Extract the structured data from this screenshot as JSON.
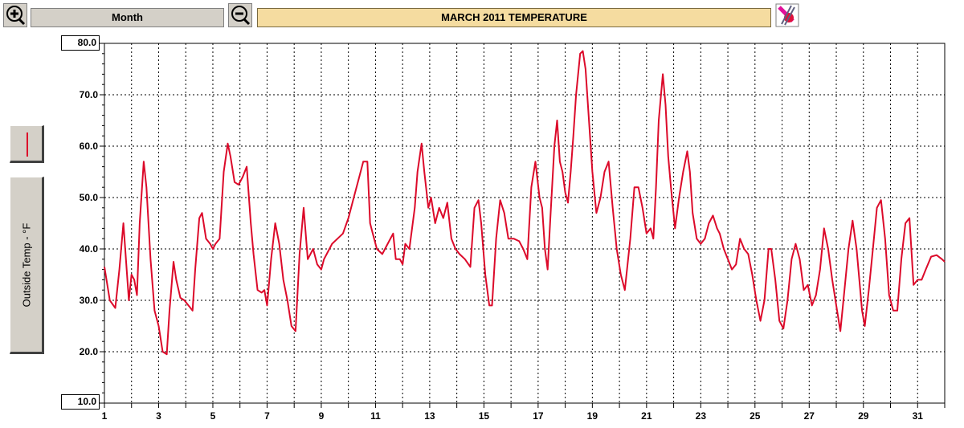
{
  "toolbar": {
    "zoom_in_icon": "zoom-in-magnifier-icon",
    "zoom_out_icon": "zoom-out-magnifier-icon",
    "period_label": "Month",
    "title": "MARCH 2011  TEMPERATURE",
    "print_icon": "print-pencil-icon"
  },
  "sidebar": {
    "legend_color": "#dc0a2a",
    "ylabel": "Outside Temp - °F"
  },
  "chart_data": {
    "type": "line",
    "title": "MARCH 2011  TEMPERATURE",
    "ylabel": "Outside Temp - °F",
    "xlabel": "",
    "xlim": [
      1,
      32
    ],
    "ylim": [
      10,
      80
    ],
    "y_ticks": [
      "10.0",
      "20.0",
      "30.0",
      "40.0",
      "50.0",
      "60.0",
      "70.0",
      "80.0"
    ],
    "x_ticks": [
      "1",
      "3",
      "5",
      "7",
      "9",
      "11",
      "13",
      "15",
      "17",
      "19",
      "21",
      "23",
      "25",
      "27",
      "29",
      "31"
    ],
    "grid": true,
    "series": [
      {
        "color": "#dc0a2a",
        "x": [
          1.0,
          1.2,
          1.4,
          1.55,
          1.7,
          1.9,
          2.0,
          2.1,
          2.2,
          2.3,
          2.45,
          2.55,
          2.7,
          2.85,
          3.0,
          3.15,
          3.3,
          3.4,
          3.55,
          3.65,
          3.8,
          3.95,
          4.1,
          4.25,
          4.35,
          4.5,
          4.6,
          4.75,
          4.9,
          5.0,
          5.1,
          5.25,
          5.4,
          5.55,
          5.65,
          5.8,
          5.95,
          6.1,
          6.25,
          6.4,
          6.5,
          6.65,
          6.8,
          6.9,
          7.0,
          7.15,
          7.3,
          7.45,
          7.6,
          7.75,
          7.9,
          8.05,
          8.2,
          8.35,
          8.5,
          8.7,
          8.85,
          9.0,
          9.1,
          9.2,
          9.4,
          9.6,
          9.8,
          10.0,
          10.2,
          10.4,
          10.55,
          10.7,
          10.8,
          10.9,
          11.05,
          11.25,
          11.45,
          11.65,
          11.75,
          11.9,
          12.0,
          12.1,
          12.25,
          12.45,
          12.55,
          12.7,
          12.8,
          12.95,
          13.05,
          13.2,
          13.35,
          13.5,
          13.65,
          13.8,
          13.95,
          14.1,
          14.3,
          14.5,
          14.65,
          14.8,
          14.9,
          15.05,
          15.2,
          15.3,
          15.45,
          15.6,
          15.75,
          15.9,
          16.1,
          16.3,
          16.45,
          16.6,
          16.75,
          16.9,
          17.05,
          17.15,
          17.25,
          17.35,
          17.45,
          17.6,
          17.7,
          17.8,
          17.9,
          18.0,
          18.1,
          18.2,
          18.3,
          18.4,
          18.55,
          18.65,
          18.75,
          18.85,
          19.0,
          19.15,
          19.3,
          19.45,
          19.6,
          19.75,
          19.9,
          20.05,
          20.2,
          20.4,
          20.55,
          20.7,
          20.85,
          21.0,
          21.15,
          21.25,
          21.35,
          21.45,
          21.6,
          21.7,
          21.8,
          21.9,
          22.05,
          22.2,
          22.35,
          22.5,
          22.6,
          22.7,
          22.85,
          23.0,
          23.15,
          23.3,
          23.45,
          23.6,
          23.7,
          23.85,
          24.0,
          24.15,
          24.3,
          24.45,
          24.6,
          24.75,
          24.9,
          25.05,
          25.2,
          25.35,
          25.5,
          25.6,
          25.75,
          25.9,
          26.05,
          26.2,
          26.35,
          26.5,
          26.65,
          26.8,
          26.95,
          27.1,
          27.25,
          27.4,
          27.55,
          27.7,
          27.85,
          28.0,
          28.15,
          28.3,
          28.45,
          28.6,
          28.75,
          28.85,
          28.95,
          29.05,
          29.2,
          29.35,
          29.5,
          29.65,
          29.8,
          29.95,
          30.1,
          30.25,
          30.4,
          30.55,
          30.7,
          30.85,
          31.0,
          31.15,
          31.3,
          31.5,
          31.7,
          31.9,
          32.0
        ],
        "y": [
          36.5,
          30,
          28.5,
          36,
          45,
          30,
          35,
          34,
          31,
          45,
          57,
          52,
          38,
          28,
          25,
          20,
          19.5,
          28,
          37.5,
          34,
          30.5,
          30,
          29,
          28,
          36,
          46,
          47,
          42,
          41,
          40,
          41,
          42,
          55,
          60.5,
          58,
          53,
          52.5,
          54,
          56,
          45,
          39,
          32,
          31.5,
          32,
          29,
          38,
          45,
          41,
          34,
          30,
          25,
          24,
          39,
          48,
          38,
          40,
          37,
          36,
          38,
          39,
          41,
          42,
          43,
          46,
          50,
          54,
          57,
          57,
          45,
          43,
          40,
          39,
          41,
          43,
          38,
          38,
          37,
          41,
          40,
          48,
          55,
          60.5,
          55,
          48,
          50,
          45,
          48,
          46,
          49,
          42,
          40,
          39,
          38,
          36.5,
          48,
          49.5,
          45,
          35,
          29,
          29,
          42,
          49.5,
          47,
          42,
          42,
          41.5,
          40,
          38,
          52,
          57,
          50,
          48,
          40,
          36,
          46,
          60,
          65,
          57,
          55,
          51,
          49,
          55,
          62,
          70,
          78,
          78.5,
          75,
          67,
          55,
          47,
          50,
          55,
          57,
          48,
          40,
          35,
          32,
          42,
          52,
          52,
          48,
          43,
          44,
          42,
          52,
          65,
          74,
          68,
          58,
          52,
          44,
          50,
          55,
          59,
          55,
          47,
          42,
          41,
          42,
          45,
          46.5,
          44,
          43,
          40,
          38,
          36,
          37,
          42,
          40,
          39,
          35,
          30,
          26,
          30,
          40,
          40,
          34,
          26,
          24.5,
          30,
          38,
          41,
          38,
          32,
          33,
          29,
          31,
          36,
          44,
          40,
          34,
          29,
          24,
          32,
          40,
          45.5,
          40,
          34,
          28,
          25,
          32,
          40,
          48,
          49.5,
          42,
          31,
          28,
          28,
          38,
          45,
          46,
          33,
          34,
          34,
          36,
          38.5,
          38.8,
          38.0,
          37.5
        ]
      }
    ]
  }
}
